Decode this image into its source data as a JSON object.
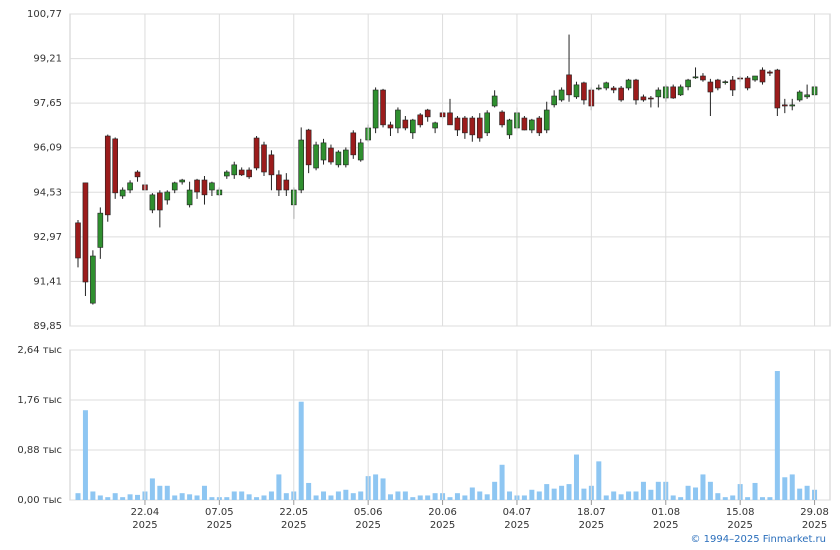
{
  "chart_data": [
    {
      "type": "candlestick",
      "up_color": "#2f8f2f",
      "down_color": "#9b1c1c",
      "grid": true,
      "ylim": [
        89.85,
        100.77
      ],
      "yticks": [
        {
          "value": 89.85,
          "label": "89,85"
        },
        {
          "value": 91.41,
          "label": "91,41"
        },
        {
          "value": 92.97,
          "label": "92,97"
        },
        {
          "value": 94.53,
          "label": "94,53"
        },
        {
          "value": 96.09,
          "label": "96,09"
        },
        {
          "value": 97.65,
          "label": "97,65"
        },
        {
          "value": 99.21,
          "label": "99,21"
        },
        {
          "value": 100.77,
          "label": "100,77"
        }
      ],
      "ohlc": [
        [
          93.46,
          93.56,
          91.9,
          92.23
        ],
        [
          94.86,
          94.86,
          90.9,
          91.39
        ],
        [
          90.65,
          92.5,
          90.6,
          92.3
        ],
        [
          92.6,
          94.0,
          92.2,
          93.8
        ],
        [
          96.5,
          96.55,
          93.5,
          93.74
        ],
        [
          96.4,
          96.45,
          94.3,
          94.51
        ],
        [
          94.4,
          94.7,
          94.3,
          94.61
        ],
        [
          94.61,
          94.95,
          94.5,
          94.86
        ],
        [
          95.24,
          95.3,
          94.9,
          95.07
        ],
        [
          94.79,
          94.9,
          94.6,
          94.61
        ],
        [
          93.91,
          94.5,
          93.8,
          94.44
        ],
        [
          94.51,
          94.6,
          93.3,
          93.91
        ],
        [
          94.26,
          94.6,
          94.1,
          94.54
        ],
        [
          94.61,
          94.9,
          94.5,
          94.86
        ],
        [
          94.89,
          95.0,
          94.8,
          94.96
        ],
        [
          94.09,
          94.9,
          94.0,
          94.61
        ],
        [
          94.96,
          95.0,
          94.3,
          94.54
        ],
        [
          94.96,
          95.1,
          94.1,
          94.44
        ],
        [
          94.61,
          94.9,
          94.4,
          94.86
        ],
        [
          94.44,
          94.7,
          94.4,
          94.61
        ],
        [
          95.1,
          95.3,
          95.0,
          95.24
        ],
        [
          95.14,
          95.6,
          95.0,
          95.49
        ],
        [
          95.31,
          95.4,
          95.1,
          95.14
        ],
        [
          95.31,
          95.4,
          95.0,
          95.07
        ],
        [
          96.43,
          96.5,
          95.3,
          95.38
        ],
        [
          96.19,
          96.3,
          95.1,
          95.24
        ],
        [
          95.84,
          96.0,
          94.6,
          95.14
        ],
        [
          95.14,
          95.3,
          94.4,
          94.61
        ],
        [
          94.96,
          95.2,
          94.4,
          94.61
        ],
        [
          94.09,
          94.7,
          93.6,
          94.61
        ],
        [
          94.61,
          96.8,
          94.5,
          96.36
        ],
        [
          96.71,
          96.75,
          95.2,
          95.49
        ],
        [
          95.38,
          96.3,
          95.3,
          96.19
        ],
        [
          95.66,
          96.4,
          95.5,
          96.26
        ],
        [
          96.08,
          96.2,
          95.5,
          95.59
        ],
        [
          95.49,
          96.0,
          95.4,
          95.94
        ],
        [
          95.49,
          96.1,
          95.4,
          96.01
        ],
        [
          96.61,
          96.7,
          95.7,
          95.84
        ],
        [
          95.66,
          96.4,
          95.6,
          96.26
        ],
        [
          96.36,
          96.9,
          96.3,
          96.78
        ],
        [
          96.78,
          98.2,
          96.6,
          98.11
        ],
        [
          98.11,
          98.15,
          96.8,
          96.89
        ],
        [
          96.89,
          97.0,
          96.5,
          96.78
        ],
        [
          96.78,
          97.5,
          96.6,
          97.41
        ],
        [
          97.06,
          97.2,
          96.7,
          96.78
        ],
        [
          96.61,
          97.1,
          96.4,
          97.06
        ],
        [
          97.24,
          97.3,
          96.8,
          96.89
        ],
        [
          97.41,
          97.45,
          97.0,
          97.17
        ],
        [
          96.78,
          97.0,
          96.6,
          96.96
        ],
        [
          97.31,
          97.35,
          97.1,
          97.17
        ],
        [
          97.31,
          97.8,
          96.9,
          96.89
        ],
        [
          97.13,
          97.2,
          96.5,
          96.71
        ],
        [
          97.13,
          97.2,
          96.4,
          96.61
        ],
        [
          97.13,
          97.2,
          96.3,
          96.54
        ],
        [
          97.13,
          97.3,
          96.3,
          96.43
        ],
        [
          96.61,
          97.4,
          96.5,
          97.31
        ],
        [
          97.55,
          98.1,
          97.5,
          97.9
        ],
        [
          97.34,
          97.4,
          96.8,
          96.89
        ],
        [
          96.54,
          97.1,
          96.4,
          97.06
        ],
        [
          96.78,
          97.5,
          96.7,
          97.31
        ],
        [
          97.13,
          97.2,
          96.7,
          96.71
        ],
        [
          96.71,
          97.1,
          96.6,
          97.06
        ],
        [
          97.13,
          97.2,
          96.5,
          96.61
        ],
        [
          96.71,
          97.7,
          96.6,
          97.41
        ],
        [
          97.59,
          98.1,
          97.5,
          97.9
        ],
        [
          97.76,
          98.2,
          97.7,
          98.11
        ],
        [
          98.64,
          100.05,
          97.7,
          97.94
        ],
        [
          97.87,
          98.4,
          97.8,
          98.29
        ],
        [
          98.36,
          98.4,
          97.6,
          97.76
        ],
        [
          98.11,
          98.2,
          97.4,
          97.55
        ],
        [
          98.15,
          98.3,
          98.1,
          98.18
        ],
        [
          98.18,
          98.4,
          98.1,
          98.36
        ],
        [
          98.18,
          98.25,
          98.0,
          98.11
        ],
        [
          98.18,
          98.25,
          97.7,
          97.76
        ],
        [
          98.18,
          98.5,
          98.1,
          98.46
        ],
        [
          98.46,
          98.5,
          97.6,
          97.76
        ],
        [
          97.87,
          97.95,
          97.7,
          97.76
        ],
        [
          97.83,
          97.9,
          97.5,
          97.8
        ],
        [
          97.87,
          98.2,
          97.5,
          98.11
        ],
        [
          97.83,
          98.3,
          97.7,
          98.22
        ],
        [
          98.22,
          98.3,
          97.8,
          97.83
        ],
        [
          97.94,
          98.3,
          97.9,
          98.22
        ],
        [
          98.22,
          98.5,
          98.1,
          98.46
        ],
        [
          98.55,
          98.9,
          98.5,
          98.57
        ],
        [
          98.6,
          98.7,
          98.4,
          98.46
        ],
        [
          98.39,
          98.5,
          97.2,
          98.04
        ],
        [
          98.46,
          98.5,
          98.1,
          98.18
        ],
        [
          98.39,
          98.45,
          98.3,
          98.4
        ],
        [
          98.46,
          98.6,
          97.9,
          98.11
        ],
        [
          98.53,
          98.6,
          98.4,
          98.5
        ],
        [
          98.53,
          98.6,
          98.1,
          98.18
        ],
        [
          98.46,
          98.6,
          98.4,
          98.6
        ],
        [
          98.81,
          98.9,
          98.3,
          98.39
        ],
        [
          98.74,
          98.8,
          98.6,
          98.7
        ],
        [
          98.81,
          98.85,
          97.2,
          97.48
        ],
        [
          97.59,
          97.8,
          97.3,
          97.55
        ],
        [
          97.55,
          97.8,
          97.4,
          97.59
        ],
        [
          97.76,
          98.1,
          97.7,
          98.04
        ],
        [
          97.87,
          98.3,
          97.8,
          97.94
        ],
        [
          97.94,
          98.3,
          97.9,
          98.22
        ]
      ]
    },
    {
      "type": "bar",
      "color": "#8ec6f2",
      "grid": true,
      "ylim": [
        0,
        2.64
      ],
      "yticks": [
        {
          "value": 0,
          "label": "0,00 тыс"
        },
        {
          "value": 0.88,
          "label": "0,88 тыс"
        },
        {
          "value": 1.76,
          "label": "1,76 тыс"
        },
        {
          "value": 2.64,
          "label": "2,64 тыс"
        }
      ],
      "categories": [
        null,
        null,
        null,
        null,
        null,
        null,
        null,
        null,
        null,
        "22.04\n2025",
        null,
        null,
        null,
        null,
        null,
        null,
        null,
        null,
        null,
        "07.05\n2025",
        null,
        null,
        null,
        null,
        null,
        null,
        null,
        null,
        null,
        "22.05\n2025",
        null,
        null,
        null,
        null,
        null,
        null,
        null,
        null,
        null,
        "05.06\n2025",
        null,
        null,
        null,
        null,
        null,
        null,
        null,
        null,
        null,
        "20.06\n2025",
        null,
        null,
        null,
        null,
        null,
        null,
        null,
        null,
        null,
        "04.07\n2025",
        null,
        null,
        null,
        null,
        null,
        null,
        null,
        null,
        null,
        "18.07\n2025",
        null,
        null,
        null,
        null,
        null,
        null,
        null,
        null,
        null,
        "01.08\n2025",
        null,
        null,
        null,
        null,
        null,
        null,
        null,
        null,
        null,
        "15.08\n2025",
        null,
        null,
        null,
        null,
        null,
        null,
        null,
        null,
        null,
        "29.08\n2025"
      ],
      "values": [
        0.12,
        1.58,
        0.15,
        0.08,
        0.05,
        0.12,
        0.05,
        0.1,
        0.09,
        0.15,
        0.38,
        0.25,
        0.25,
        0.08,
        0.12,
        0.1,
        0.08,
        0.25,
        0.05,
        0.05,
        0.05,
        0.15,
        0.15,
        0.1,
        0.05,
        0.08,
        0.15,
        0.45,
        0.12,
        0.15,
        1.73,
        0.3,
        0.08,
        0.15,
        0.08,
        0.15,
        0.18,
        0.12,
        0.15,
        0.42,
        0.45,
        0.38,
        0.1,
        0.15,
        0.15,
        0.05,
        0.08,
        0.08,
        0.12,
        0.12,
        0.05,
        0.12,
        0.08,
        0.22,
        0.15,
        0.1,
        0.32,
        0.62,
        0.15,
        0.08,
        0.08,
        0.18,
        0.15,
        0.28,
        0.2,
        0.25,
        0.28,
        0.8,
        0.2,
        0.25,
        0.68,
        0.08,
        0.15,
        0.1,
        0.15,
        0.15,
        0.32,
        0.18,
        0.32,
        0.32,
        0.08,
        0.05,
        0.25,
        0.22,
        0.45,
        0.32,
        0.12,
        0.05,
        0.08,
        0.28,
        0.05,
        0.3,
        0.05,
        0.05,
        2.27,
        0.4,
        0.45,
        0.2,
        0.25,
        0.18
      ]
    }
  ],
  "footer": "© 1994–2025 Finmarket.ru"
}
